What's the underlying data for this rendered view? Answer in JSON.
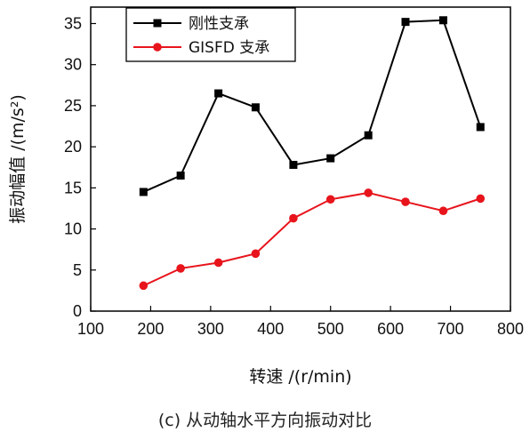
{
  "chart_data": {
    "type": "line",
    "xlabel": "转速 /(r/min)",
    "ylabel": "振动幅值 /(m/s²)",
    "xlim": [
      100,
      800
    ],
    "ylim": [
      0,
      37
    ],
    "xticks": [
      100,
      200,
      300,
      400,
      500,
      600,
      700,
      800
    ],
    "yticks": [
      0,
      5,
      10,
      15,
      20,
      25,
      30,
      35
    ],
    "legend_position": "top-left",
    "grid": false,
    "series": [
      {
        "name": "刚性支承",
        "color": "#000000",
        "marker": "square",
        "x": [
          188,
          250,
          313,
          375,
          438,
          500,
          563,
          625,
          688,
          750
        ],
        "y": [
          14.5,
          16.5,
          26.5,
          24.8,
          17.8,
          18.6,
          21.4,
          35.2,
          35.4,
          22.4
        ]
      },
      {
        "name": "GISFD 支承",
        "color": "#e8141c",
        "marker": "circle",
        "x": [
          188,
          250,
          313,
          375,
          438,
          500,
          563,
          625,
          688,
          750
        ],
        "y": [
          3.1,
          5.2,
          5.9,
          7.0,
          11.3,
          13.6,
          14.4,
          13.3,
          12.2,
          13.7
        ]
      }
    ]
  },
  "caption": "(c) 从动轴水平方向振动对比"
}
